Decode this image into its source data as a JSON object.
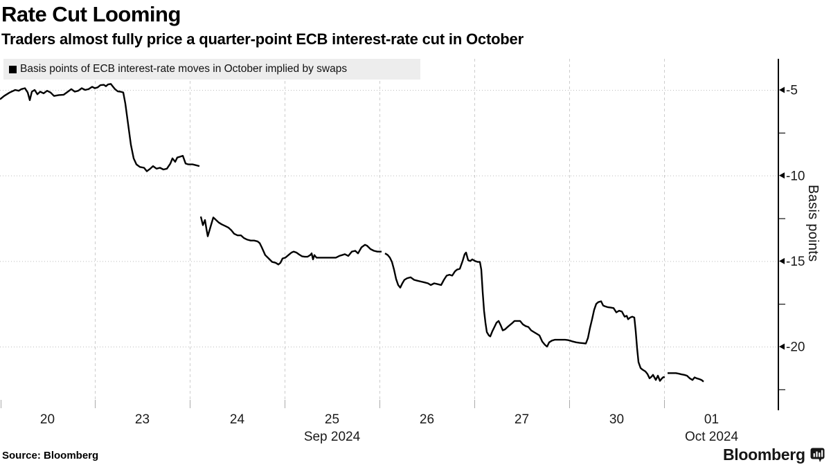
{
  "title": "Rate Cut Looming",
  "subtitle": "Traders almost fully price a quarter-point ECB interest-rate cut in October",
  "legend": {
    "marker": "black-square",
    "label": "Basis points of ECB interest-rate moves in October implied by swaps"
  },
  "source": "Source: Bloomberg",
  "brand": {
    "name": "Bloomberg"
  },
  "colors": {
    "line": "#000000",
    "grid_vertical": "#cccccc",
    "grid_horizontal": "#bbbbbb",
    "legend_background": "#ededed",
    "axis": "#000000",
    "text": "#1a1a1a"
  },
  "chart_data": {
    "type": "line",
    "title": "Rate Cut Looming",
    "subtitle": "Traders almost fully price a quarter-point ECB interest-rate cut in October",
    "series_name": "Basis points of ECB interest-rate moves in October implied by swaps",
    "unit": "basis points",
    "grid": true,
    "legend_position": "top-left",
    "x_axis": {
      "type": "time-business-days",
      "tick_labels": [
        "20",
        "23",
        "24",
        "25",
        "26",
        "27",
        "30",
        "01"
      ],
      "month_labels": [
        {
          "text": "Sep 2024",
          "under_tick_index": 3
        },
        {
          "text": "Oct 2024",
          "under_tick_index": 7
        }
      ]
    },
    "y_axis": {
      "label": "Basis points",
      "side": "right",
      "major_ticks": [
        -5,
        -10,
        -15,
        -20
      ],
      "major_tick_labels": [
        "-5",
        "-10",
        "-15",
        "-20"
      ],
      "minor_ticks": [
        -7.5,
        -12.5,
        -17.5,
        -22.5
      ]
    },
    "ylim": [
      -23.6,
      -3.2
    ],
    "x_unit_note": "x values below are plot pixels; one business day = 137 px, day regions start at x=0 (Sep 20)",
    "segments": [
      [
        [
          0,
          -5.55
        ],
        [
          6,
          -5.35
        ],
        [
          14,
          -5.15
        ],
        [
          22,
          -5.0
        ],
        [
          27,
          -5.05
        ],
        [
          31,
          -4.95
        ],
        [
          36,
          -4.9
        ],
        [
          40,
          -5.15
        ],
        [
          43,
          -5.6
        ],
        [
          46,
          -5.1
        ],
        [
          50,
          -5.0
        ],
        [
          54,
          -5.25
        ],
        [
          58,
          -5.1
        ],
        [
          63,
          -5.2
        ],
        [
          68,
          -5.05
        ],
        [
          73,
          -5.15
        ],
        [
          78,
          -5.35
        ],
        [
          85,
          -5.3
        ],
        [
          92,
          -5.28
        ],
        [
          98,
          -5.1
        ],
        [
          103,
          -4.95
        ],
        [
          108,
          -5.1
        ],
        [
          113,
          -5.05
        ],
        [
          118,
          -4.9
        ],
        [
          123,
          -5.0
        ],
        [
          128,
          -4.95
        ],
        [
          133,
          -4.82
        ],
        [
          137,
          -4.9
        ],
        [
          141,
          -4.85
        ],
        [
          145,
          -4.72
        ],
        [
          150,
          -4.7
        ],
        [
          153,
          -4.78
        ],
        [
          156,
          -4.68
        ],
        [
          160,
          -4.65
        ],
        [
          163,
          -4.8
        ],
        [
          166,
          -4.95
        ],
        [
          170,
          -5.08
        ],
        [
          174,
          -5.1
        ],
        [
          178,
          -5.15
        ],
        [
          181,
          -5.8
        ],
        [
          185,
          -7.0
        ],
        [
          189,
          -8.2
        ],
        [
          193,
          -9.0
        ],
        [
          197,
          -9.35
        ],
        [
          202,
          -9.5
        ],
        [
          208,
          -9.55
        ],
        [
          212,
          -9.75
        ],
        [
          217,
          -9.6
        ],
        [
          221,
          -9.45
        ],
        [
          226,
          -9.6
        ],
        [
          231,
          -9.55
        ],
        [
          236,
          -9.65
        ],
        [
          241,
          -9.6
        ],
        [
          246,
          -9.3
        ],
        [
          249,
          -9.0
        ],
        [
          253,
          -9.2
        ],
        [
          256,
          -8.95
        ],
        [
          260,
          -8.9
        ],
        [
          264,
          -8.85
        ],
        [
          268,
          -9.3
        ],
        [
          272,
          -9.35
        ],
        [
          278,
          -9.35
        ],
        [
          283,
          -9.4
        ],
        [
          288,
          -9.45
        ]
      ],
      [
        [
          290,
          -12.4
        ],
        [
          293,
          -12.9
        ],
        [
          296,
          -12.6
        ],
        [
          298,
          -13.1
        ],
        [
          300,
          -13.55
        ],
        [
          304,
          -13.0
        ],
        [
          308,
          -12.45
        ],
        [
          312,
          -12.6
        ],
        [
          316,
          -12.75
        ],
        [
          320,
          -12.85
        ],
        [
          325,
          -12.95
        ],
        [
          330,
          -13.05
        ],
        [
          334,
          -13.2
        ],
        [
          338,
          -13.4
        ],
        [
          343,
          -13.5
        ],
        [
          348,
          -13.5
        ],
        [
          352,
          -13.65
        ],
        [
          357,
          -13.75
        ],
        [
          362,
          -13.8
        ],
        [
          367,
          -13.8
        ],
        [
          372,
          -13.85
        ],
        [
          375,
          -13.95
        ],
        [
          378,
          -14.2
        ],
        [
          383,
          -14.65
        ],
        [
          388,
          -14.85
        ],
        [
          393,
          -15.05
        ],
        [
          398,
          -15.1
        ],
        [
          402,
          -15.2
        ],
        [
          405,
          -15.1
        ],
        [
          408,
          -14.85
        ],
        [
          412,
          -14.8
        ],
        [
          415,
          -14.7
        ],
        [
          418,
          -14.6
        ],
        [
          421,
          -14.5
        ],
        [
          424,
          -14.45
        ],
        [
          428,
          -14.5
        ],
        [
          432,
          -14.62
        ],
        [
          436,
          -14.72
        ],
        [
          440,
          -14.75
        ],
        [
          444,
          -14.75
        ],
        [
          448,
          -14.65
        ],
        [
          450,
          -14.55
        ],
        [
          452,
          -14.9
        ],
        [
          454,
          -14.65
        ],
        [
          457,
          -14.8
        ],
        [
          462,
          -14.8
        ],
        [
          468,
          -14.8
        ],
        [
          474,
          -14.8
        ],
        [
          480,
          -14.8
        ],
        [
          485,
          -14.8
        ],
        [
          490,
          -14.7
        ],
        [
          494,
          -14.65
        ],
        [
          498,
          -14.6
        ],
        [
          503,
          -14.7
        ],
        [
          508,
          -14.45
        ],
        [
          513,
          -14.4
        ],
        [
          517,
          -14.55
        ],
        [
          522,
          -14.2
        ],
        [
          527,
          -14.05
        ],
        [
          530,
          -14.1
        ],
        [
          535,
          -14.3
        ],
        [
          540,
          -14.4
        ],
        [
          545,
          -14.45
        ],
        [
          551,
          -14.45
        ]
      ],
      [
        [
          556,
          -14.55
        ],
        [
          560,
          -14.65
        ],
        [
          563,
          -14.8
        ],
        [
          566,
          -15.05
        ],
        [
          569,
          -15.5
        ],
        [
          572,
          -16.05
        ],
        [
          575,
          -16.4
        ],
        [
          578,
          -16.55
        ],
        [
          581,
          -16.3
        ],
        [
          584,
          -16.1
        ],
        [
          588,
          -16.0
        ],
        [
          593,
          -15.95
        ],
        [
          598,
          -16.1
        ],
        [
          603,
          -16.15
        ],
        [
          608,
          -16.2
        ],
        [
          613,
          -16.25
        ],
        [
          618,
          -16.3
        ],
        [
          622,
          -16.4
        ],
        [
          627,
          -16.3
        ],
        [
          632,
          -16.35
        ],
        [
          637,
          -16.4
        ],
        [
          641,
          -16.1
        ],
        [
          645,
          -15.85
        ],
        [
          649,
          -15.8
        ],
        [
          653,
          -15.85
        ],
        [
          657,
          -15.6
        ],
        [
          660,
          -15.5
        ],
        [
          664,
          -15.45
        ],
        [
          668,
          -15.0
        ],
        [
          671,
          -14.6
        ],
        [
          673,
          -14.5
        ],
        [
          676,
          -14.95
        ],
        [
          679,
          -15.0
        ],
        [
          682,
          -14.9
        ],
        [
          686,
          -15.0
        ],
        [
          690,
          -15.05
        ],
        [
          693,
          -15.05
        ],
        [
          695,
          -15.5
        ],
        [
          697,
          -16.8
        ],
        [
          699,
          -17.9
        ],
        [
          701,
          -18.6
        ],
        [
          703,
          -19.15
        ],
        [
          706,
          -19.35
        ],
        [
          708,
          -19.4
        ],
        [
          711,
          -19.1
        ],
        [
          714,
          -18.85
        ],
        [
          717,
          -18.6
        ],
        [
          720,
          -18.5
        ],
        [
          723,
          -18.75
        ],
        [
          726,
          -19.05
        ],
        [
          729,
          -19.0
        ],
        [
          733,
          -18.85
        ],
        [
          736,
          -18.75
        ],
        [
          739,
          -18.65
        ],
        [
          743,
          -18.5
        ],
        [
          747,
          -18.5
        ],
        [
          751,
          -18.5
        ],
        [
          755,
          -18.7
        ],
        [
          759,
          -18.8
        ],
        [
          763,
          -18.85
        ],
        [
          767,
          -19.05
        ],
        [
          771,
          -19.15
        ],
        [
          775,
          -19.25
        ],
        [
          779,
          -19.35
        ],
        [
          783,
          -19.7
        ],
        [
          787,
          -19.9
        ],
        [
          790,
          -20.0
        ],
        [
          793,
          -19.75
        ],
        [
          797,
          -19.65
        ],
        [
          801,
          -19.6
        ],
        [
          806,
          -19.6
        ],
        [
          811,
          -19.6
        ],
        [
          816,
          -19.6
        ],
        [
          820,
          -19.62
        ],
        [
          823,
          -19.65
        ],
        [
          827,
          -19.7
        ],
        [
          832,
          -19.75
        ],
        [
          837,
          -19.78
        ],
        [
          842,
          -19.8
        ],
        [
          846,
          -19.82
        ],
        [
          849,
          -19.5
        ],
        [
          852,
          -18.9
        ],
        [
          855,
          -18.4
        ],
        [
          858,
          -17.85
        ],
        [
          861,
          -17.5
        ],
        [
          864,
          -17.4
        ],
        [
          868,
          -17.35
        ],
        [
          871,
          -17.6
        ],
        [
          874,
          -17.65
        ],
        [
          878,
          -17.7
        ],
        [
          882,
          -17.72
        ],
        [
          886,
          -17.75
        ],
        [
          890,
          -18.0
        ],
        [
          894,
          -17.9
        ],
        [
          898,
          -17.95
        ],
        [
          902,
          -18.25
        ],
        [
          905,
          -18.2
        ],
        [
          907,
          -18.4
        ],
        [
          910,
          -18.3
        ],
        [
          913,
          -18.25
        ],
        [
          916,
          -18.3
        ],
        [
          918,
          -19.1
        ],
        [
          920,
          -20.1
        ],
        [
          922,
          -20.9
        ],
        [
          925,
          -21.25
        ],
        [
          928,
          -21.35
        ],
        [
          932,
          -21.45
        ],
        [
          935,
          -21.6
        ],
        [
          938,
          -21.85
        ],
        [
          941,
          -21.75
        ],
        [
          943,
          -21.65
        ],
        [
          945,
          -21.8
        ],
        [
          947,
          -21.95
        ],
        [
          950,
          -21.7
        ],
        [
          953,
          -22.0
        ],
        [
          956,
          -21.85
        ],
        [
          958,
          -21.78
        ],
        [
          960,
          -21.8
        ]
      ],
      [
        [
          964,
          -21.55
        ],
        [
          968,
          -21.55
        ],
        [
          972,
          -21.55
        ],
        [
          976,
          -21.55
        ],
        [
          980,
          -21.58
        ],
        [
          984,
          -21.62
        ],
        [
          988,
          -21.65
        ],
        [
          992,
          -21.7
        ],
        [
          996,
          -21.85
        ],
        [
          1000,
          -21.95
        ],
        [
          1003,
          -21.8
        ],
        [
          1006,
          -21.85
        ],
        [
          1010,
          -21.9
        ],
        [
          1013,
          -21.95
        ],
        [
          1016,
          -22.05
        ]
      ]
    ]
  }
}
